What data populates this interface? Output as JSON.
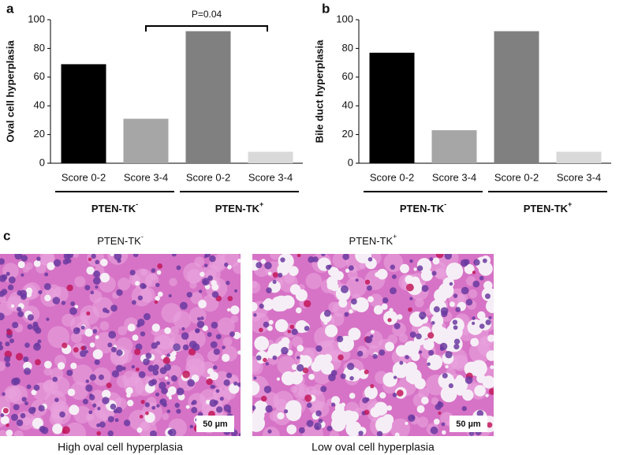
{
  "chart_data": [
    {
      "type": "bar",
      "panel_label": "a",
      "y_label": "Oval cell hyperplasia",
      "categories": [
        "Score 0-2",
        "Score 3-4",
        "Score 0-2",
        "Score 3-4"
      ],
      "values": [
        69,
        31,
        92,
        8
      ],
      "colors": [
        "#000000",
        "#a6a6a6",
        "#808080",
        "#d9d9d9"
      ],
      "groups": [
        {
          "name": "PTEN-TK",
          "superscript": "-"
        },
        {
          "name": "PTEN-TK",
          "superscript": "+"
        }
      ],
      "annotation": "P=0.04",
      "ylim": [
        0,
        100
      ],
      "yticks": [
        0,
        20,
        40,
        60,
        80,
        100
      ]
    },
    {
      "type": "bar",
      "panel_label": "b",
      "y_label": "Bile duct hyperplasia",
      "categories": [
        "Score 0-2",
        "Score 3-4",
        "Score 0-2",
        "Score 3-4"
      ],
      "values": [
        77,
        23,
        92,
        8
      ],
      "colors": [
        "#000000",
        "#a6a6a6",
        "#808080",
        "#d9d9d9"
      ],
      "groups": [
        {
          "name": "PTEN-TK",
          "superscript": "-"
        },
        {
          "name": "PTEN-TK",
          "superscript": "+"
        }
      ],
      "ylim": [
        0,
        100
      ],
      "yticks": [
        0,
        20,
        40,
        60,
        80,
        100
      ]
    }
  ],
  "panel_c": {
    "label": "c",
    "images": [
      {
        "title": "PTEN-TK",
        "superscript": "-",
        "scale_bar": "50 µm",
        "caption": "High oval cell hyperplasia"
      },
      {
        "title": "PTEN-TK",
        "superscript": "+",
        "scale_bar": "50 µm",
        "caption": "Low oval cell hyperplasia"
      }
    ]
  }
}
